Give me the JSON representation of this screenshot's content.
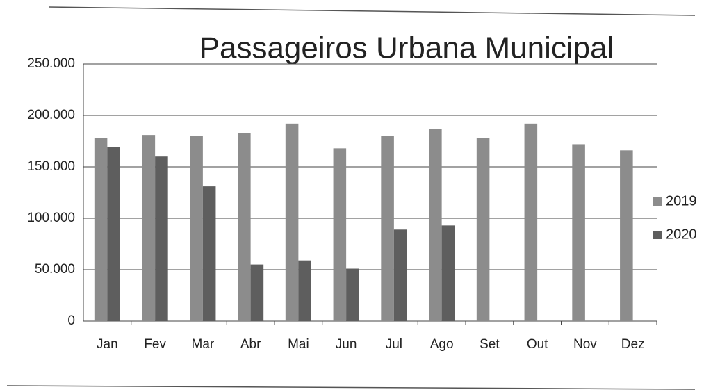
{
  "chart_data": {
    "type": "bar",
    "title": "Passageiros Urbana Municipal",
    "categories": [
      "Jan",
      "Fev",
      "Mar",
      "Abr",
      "Mai",
      "Jun",
      "Jul",
      "Ago",
      "Set",
      "Out",
      "Nov",
      "Dez"
    ],
    "series": [
      {
        "name": "2019",
        "color": "#8c8c8c",
        "values": [
          178000,
          181000,
          180000,
          183000,
          192000,
          168000,
          180000,
          187000,
          178000,
          192000,
          172000,
          166000
        ]
      },
      {
        "name": "2020",
        "color": "#5e5e5e",
        "values": [
          169000,
          160000,
          131000,
          55000,
          59000,
          51000,
          89000,
          93000,
          null,
          null,
          null,
          null
        ]
      }
    ],
    "ylim": [
      0,
      250000
    ],
    "yticks": [
      {
        "value": 0,
        "label": "0"
      },
      {
        "value": 50000,
        "label": "50.000"
      },
      {
        "value": 100000,
        "label": "100.000"
      },
      {
        "value": 150000,
        "label": "150.000"
      },
      {
        "value": 200000,
        "label": "200.000"
      },
      {
        "value": 250000,
        "label": "250.000"
      }
    ],
    "grid": true,
    "legend": "right"
  }
}
